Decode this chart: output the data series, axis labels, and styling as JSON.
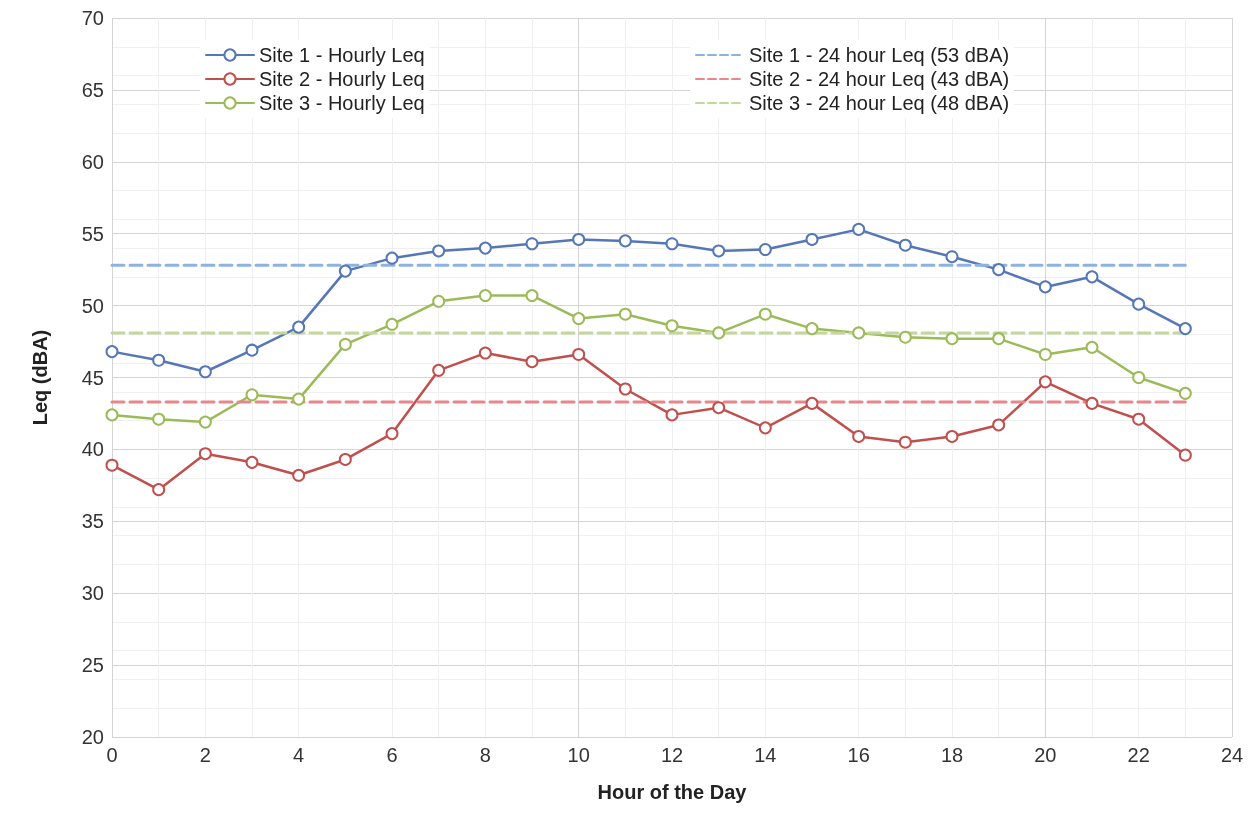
{
  "chart_data": {
    "type": "line",
    "xlabel": "Hour of the Day",
    "ylabel": "Leq (dBA)",
    "x": [
      0,
      1,
      2,
      3,
      4,
      5,
      6,
      7,
      8,
      9,
      10,
      11,
      12,
      13,
      14,
      15,
      16,
      17,
      18,
      19,
      20,
      21,
      22,
      23
    ],
    "xlim": [
      0,
      24
    ],
    "xticks": [
      0,
      2,
      4,
      6,
      8,
      10,
      12,
      14,
      16,
      18,
      20,
      22,
      24
    ],
    "ylim": [
      20,
      70
    ],
    "yticks": [
      20,
      25,
      30,
      35,
      40,
      45,
      50,
      55,
      60,
      65,
      70
    ],
    "grid": true,
    "legend": "top",
    "marker": "circle",
    "line_style": "solid",
    "series": [
      {
        "name": "Site 1 - Hourly Leq",
        "color": "#5577b8",
        "values": [
          46.8,
          46.2,
          45.4,
          46.9,
          48.5,
          52.4,
          53.3,
          53.8,
          54.0,
          54.3,
          54.6,
          54.5,
          54.3,
          53.8,
          53.9,
          54.6,
          55.3,
          54.2,
          53.4,
          52.5,
          51.3,
          52.0,
          50.1,
          48.4
        ]
      },
      {
        "name": "Site 2 - Hourly Leq",
        "color": "#c0504d",
        "values": [
          38.9,
          37.2,
          39.7,
          39.1,
          38.2,
          39.3,
          41.1,
          45.5,
          46.7,
          46.1,
          46.6,
          44.2,
          42.4,
          42.9,
          41.5,
          43.2,
          40.9,
          40.5,
          40.9,
          41.7,
          44.7,
          43.2,
          42.1,
          39.6
        ]
      },
      {
        "name": "Site 3 - Hourly Leq",
        "color": "#9bbb59",
        "values": [
          42.4,
          42.1,
          41.9,
          43.8,
          43.5,
          47.3,
          48.7,
          50.3,
          50.7,
          50.7,
          49.1,
          49.4,
          48.6,
          48.1,
          49.4,
          48.4,
          48.1,
          47.8,
          47.7,
          47.7,
          46.6,
          47.1,
          45.0,
          43.9
        ]
      },
      {
        "name": "Site 1 - 24 hour Leq (53 dBA)",
        "color": "#8eb1e3",
        "values": [
          52.8,
          52.8,
          52.8,
          52.8,
          52.8,
          52.8,
          52.8,
          52.8,
          52.8,
          52.8,
          52.8,
          52.8,
          52.8,
          52.8,
          52.8,
          52.8,
          52.8,
          52.8,
          52.8,
          52.8,
          52.8,
          52.8,
          52.8,
          52.8
        ],
        "line_style": "dashed",
        "marker": "none"
      },
      {
        "name": "Site 2 - 24 hour Leq (43 dBA)",
        "color": "#e8868a",
        "values": [
          43.3,
          43.3,
          43.3,
          43.3,
          43.3,
          43.3,
          43.3,
          43.3,
          43.3,
          43.3,
          43.3,
          43.3,
          43.3,
          43.3,
          43.3,
          43.3,
          43.3,
          43.3,
          43.3,
          43.3,
          43.3,
          43.3,
          43.3,
          43.3
        ],
        "line_style": "dashed",
        "marker": "none"
      },
      {
        "name": "Site 3 - 24 hour Leq (48 dBA)",
        "color": "#c3d69b",
        "values": [
          48.1,
          48.1,
          48.1,
          48.1,
          48.1,
          48.1,
          48.1,
          48.1,
          48.1,
          48.1,
          48.1,
          48.1,
          48.1,
          48.1,
          48.1,
          48.1,
          48.1,
          48.1,
          48.1,
          48.1,
          48.1,
          48.1,
          48.1,
          48.1
        ],
        "line_style": "dashed",
        "marker": "none"
      }
    ]
  }
}
